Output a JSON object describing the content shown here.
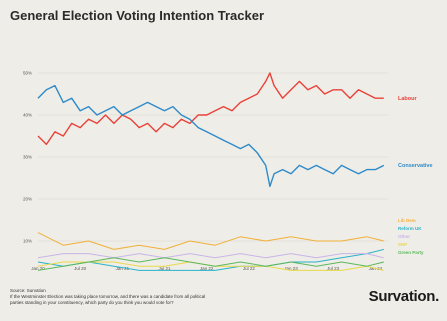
{
  "title": "General Election Voting Intention Tracker",
  "footer": {
    "source": "Source: Survation",
    "question_line1": "If the Westminster Election was taking place tomorrow, and there was a candidate from all political",
    "question_line2": "parties standing in your constituency, which party do you think you would vote for?"
  },
  "brand": "Survation.",
  "chart_data": {
    "type": "line",
    "title": "General Election Voting Intention Tracker",
    "xlabel": "",
    "ylabel": "",
    "x_ticks": [
      "Jan 20",
      "Jul 20",
      "Jan 21",
      "Jul 21",
      "Jan 22",
      "Jul 22",
      "Jan 23",
      "Jul 23",
      "Jan 24"
    ],
    "y_ticks": [
      "50%",
      "40%",
      "30%",
      "20%",
      "10%"
    ],
    "ylim": [
      5,
      55
    ],
    "grid": true,
    "legend": "right-side direct labels",
    "series": [
      {
        "name": "Labour",
        "color": "#e8423a",
        "x": [
          2020.0,
          2020.1,
          2020.2,
          2020.3,
          2020.4,
          2020.5,
          2020.6,
          2020.7,
          2020.8,
          2020.9,
          2021.0,
          2021.1,
          2021.2,
          2021.3,
          2021.4,
          2021.5,
          2021.6,
          2021.7,
          2021.8,
          2021.9,
          2022.0,
          2022.1,
          2022.2,
          2022.3,
          2022.4,
          2022.5,
          2022.6,
          2022.7,
          2022.75,
          2022.8,
          2022.9,
          2023.0,
          2023.1,
          2023.2,
          2023.3,
          2023.4,
          2023.5,
          2023.6,
          2023.7,
          2023.8,
          2023.9,
          2024.0,
          2024.1
        ],
        "values": [
          35,
          33,
          36,
          35,
          38,
          37,
          39,
          38,
          40,
          38,
          40,
          39,
          37,
          38,
          36,
          38,
          37,
          39,
          38,
          40,
          40,
          41,
          42,
          41,
          43,
          44,
          45,
          48,
          50,
          47,
          44,
          46,
          48,
          46,
          47,
          45,
          46,
          46,
          44,
          46,
          45,
          44,
          44
        ]
      },
      {
        "name": "Conservative",
        "color": "#2e8bc9",
        "x": [
          2020.0,
          2020.1,
          2020.2,
          2020.3,
          2020.4,
          2020.5,
          2020.6,
          2020.7,
          2020.8,
          2020.9,
          2021.0,
          2021.1,
          2021.2,
          2021.3,
          2021.4,
          2021.5,
          2021.6,
          2021.7,
          2021.8,
          2021.9,
          2022.0,
          2022.1,
          2022.2,
          2022.3,
          2022.4,
          2022.5,
          2022.6,
          2022.7,
          2022.75,
          2022.8,
          2022.9,
          2023.0,
          2023.1,
          2023.2,
          2023.3,
          2023.4,
          2023.5,
          2023.6,
          2023.7,
          2023.8,
          2023.9,
          2024.0,
          2024.1
        ],
        "values": [
          44,
          46,
          47,
          43,
          44,
          41,
          42,
          40,
          41,
          42,
          40,
          41,
          42,
          43,
          42,
          41,
          42,
          40,
          39,
          37,
          36,
          35,
          34,
          33,
          32,
          33,
          31,
          28,
          23,
          26,
          27,
          26,
          28,
          27,
          28,
          27,
          26,
          28,
          27,
          26,
          27,
          27,
          28
        ]
      },
      {
        "name": "Lib Dem",
        "color": "#f0b03a",
        "x": [
          2020.0,
          2020.3,
          2020.6,
          2020.9,
          2021.2,
          2021.5,
          2021.8,
          2022.1,
          2022.4,
          2022.7,
          2023.0,
          2023.3,
          2023.6,
          2023.9,
          2024.1
        ],
        "values": [
          12,
          9,
          10,
          8,
          9,
          8,
          10,
          9,
          11,
          10,
          11,
          10,
          10,
          11,
          10
        ]
      },
      {
        "name": "Reform UK",
        "color": "#27b3c9",
        "x": [
          2020.0,
          2020.3,
          2020.6,
          2020.9,
          2021.2,
          2021.5,
          2021.8,
          2022.1,
          2022.4,
          2022.7,
          2023.0,
          2023.3,
          2023.6,
          2023.9,
          2024.1
        ],
        "values": [
          5,
          4,
          5,
          4,
          3,
          3,
          3,
          3,
          4,
          4,
          5,
          5,
          6,
          7,
          8
        ]
      },
      {
        "name": "Other",
        "color": "#c9b5e8",
        "x": [
          2020.0,
          2020.3,
          2020.6,
          2020.9,
          2021.2,
          2021.5,
          2021.8,
          2022.1,
          2022.4,
          2022.7,
          2023.0,
          2023.3,
          2023.6,
          2023.9,
          2024.1
        ],
        "values": [
          6,
          7,
          7,
          6,
          7,
          6,
          7,
          6,
          7,
          6,
          7,
          6,
          7,
          7,
          6
        ]
      },
      {
        "name": "SNP",
        "color": "#e8d94a",
        "x": [
          2020.0,
          2020.3,
          2020.6,
          2020.9,
          2021.2,
          2021.5,
          2021.8,
          2022.1,
          2022.4,
          2022.7,
          2023.0,
          2023.3,
          2023.6,
          2023.9,
          2024.1
        ],
        "values": [
          4,
          5,
          5,
          5,
          4,
          4,
          5,
          4,
          4,
          4,
          3,
          3,
          3,
          4,
          3
        ]
      },
      {
        "name": "Green Party",
        "color": "#5cb85c",
        "x": [
          2020.0,
          2020.3,
          2020.6,
          2020.9,
          2021.2,
          2021.5,
          2021.8,
          2022.1,
          2022.4,
          2022.7,
          2023.0,
          2023.3,
          2023.6,
          2023.9,
          2024.1
        ],
        "values": [
          3,
          4,
          5,
          6,
          5,
          6,
          5,
          4,
          5,
          4,
          5,
          4,
          5,
          4,
          5
        ]
      }
    ]
  }
}
